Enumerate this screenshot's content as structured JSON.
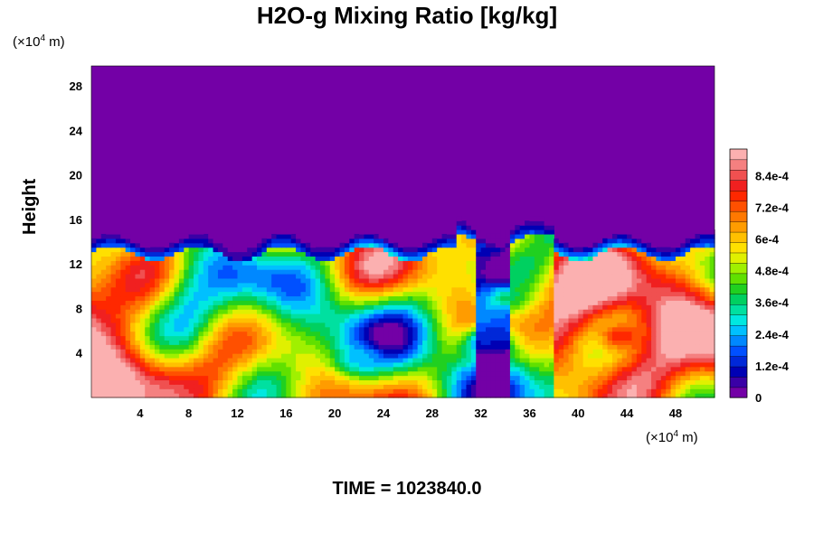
{
  "title": "H2O-g Mixing Ratio [kg/kg]",
  "time_label": "TIME = 1023840.0",
  "x_unit": {
    "prefix": "(×10",
    "exp": "4",
    "suffix": " m)"
  },
  "y_unit": {
    "prefix": "(×10",
    "exp": "4",
    "suffix": " m)"
  },
  "colors": {
    "background_field": "#7300a6",
    "scale": [
      "#7300a6",
      "#3a00a6",
      "#0000b4",
      "#0028d8",
      "#0050ff",
      "#0088ff",
      "#00c0ff",
      "#00e8e0",
      "#00e0a0",
      "#00d060",
      "#20d020",
      "#60e000",
      "#a0f000",
      "#e0f000",
      "#ffe000",
      "#ffc000",
      "#ff9c00",
      "#ff7800",
      "#ff5000",
      "#ff2800",
      "#f02020",
      "#f05050",
      "#f58080",
      "#fbb0b0"
    ]
  },
  "chart_data": {
    "type": "heatmap",
    "title": "H2O-g Mixing Ratio [kg/kg]",
    "xlabel": "",
    "ylabel": "Height",
    "xlim": [
      0,
      51.2
    ],
    "ylim": [
      0,
      29.8
    ],
    "x_ticks": [
      4,
      8,
      12,
      16,
      20,
      24,
      28,
      32,
      36,
      40,
      44,
      48
    ],
    "y_ticks": [
      4,
      8,
      12,
      16,
      20,
      24,
      28
    ],
    "colorbar": {
      "range": [
        0,
        0.00094
      ],
      "tick_values": [
        0,
        0.00012,
        0.00024,
        0.00036,
        0.00048,
        0.0006,
        0.00072,
        0.00084
      ],
      "tick_labels": [
        "0",
        "1.2e-4",
        "2.4e-4",
        "3.6e-4",
        "4.8e-4",
        "6e-4",
        "7.2e-4",
        "8.4e-4"
      ]
    },
    "moist_layer_top_height": 13,
    "dry_slot_x_range": [
      31.5,
      34.5
    ],
    "features": [
      {
        "x": 22,
        "y": 3.5,
        "value": 0.00026
      },
      {
        "x": 43.5,
        "y": 5.5,
        "value": 0.00078
      },
      {
        "x": 34,
        "y": 9,
        "value": 0.00036
      },
      {
        "x": 32.5,
        "y": 5,
        "value": 0.00012
      }
    ]
  }
}
